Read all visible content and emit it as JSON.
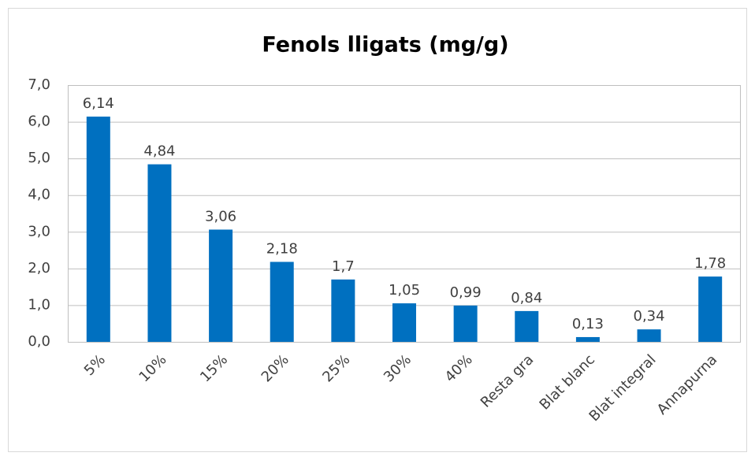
{
  "chart_data": {
    "type": "bar",
    "title": "Fenols lligats (mg/g)",
    "categories": [
      "5%",
      "10%",
      "15%",
      "20%",
      "25%",
      "30%",
      "40%",
      "Resta gra",
      "Blat blanc",
      "Blat integral",
      "Annapurna"
    ],
    "values": [
      6.14,
      4.84,
      3.06,
      2.18,
      1.7,
      1.05,
      0.99,
      0.84,
      0.13,
      0.34,
      1.78
    ],
    "value_labels": [
      "6,14",
      "4,84",
      "3,06",
      "2,18",
      "1,7",
      "1,05",
      "0,99",
      "0,84",
      "0,13",
      "0,34",
      "1,78"
    ],
    "color": "#0070c0",
    "ylim": [
      0,
      7
    ],
    "yticks": [
      {
        "value": 0,
        "label": "0,0"
      },
      {
        "value": 1,
        "label": "1,0"
      },
      {
        "value": 2,
        "label": "2,0"
      },
      {
        "value": 3,
        "label": "3,0"
      },
      {
        "value": 4,
        "label": "4,0"
      },
      {
        "value": 5,
        "label": "5,0"
      },
      {
        "value": 6,
        "label": "6,0"
      },
      {
        "value": 7,
        "label": "7,0"
      }
    ],
    "grid": true
  }
}
